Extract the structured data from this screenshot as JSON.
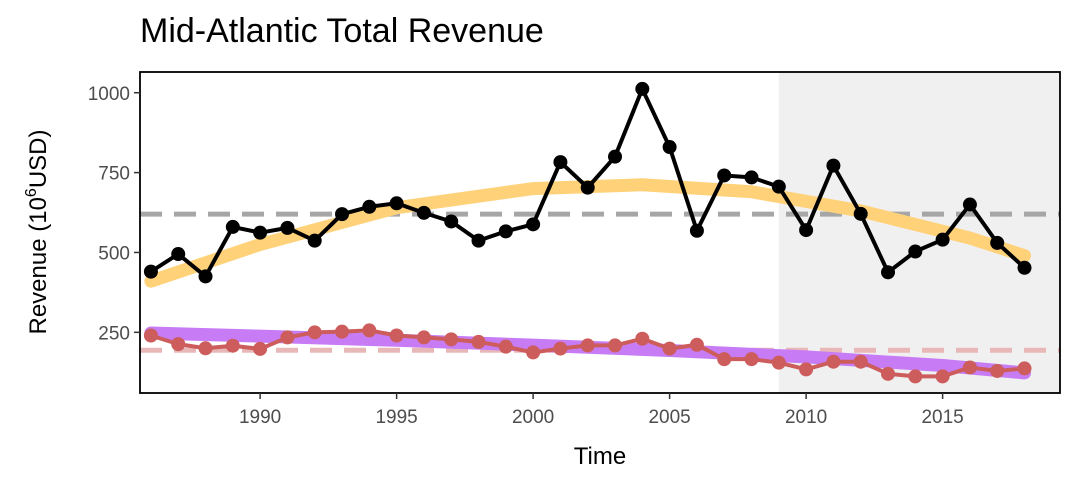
{
  "chart_data": {
    "type": "line",
    "title": "Mid-Atlantic Total Revenue",
    "xlabel": "Time",
    "ylabel": "Revenue (10",
    "ylabel_sup": "6",
    "ylabel_end": "USD)",
    "xlim": [
      1985.6,
      2019.3
    ],
    "ylim": [
      60,
      1065
    ],
    "x_ticks": [
      1990,
      1995,
      2000,
      2005,
      2010,
      2015
    ],
    "y_ticks": [
      250,
      500,
      750,
      1000
    ],
    "shaded_region": {
      "from": 2009,
      "to": 2019.3,
      "color": "#f0f0f0"
    },
    "x": [
      1986,
      1987,
      1988,
      1989,
      1990,
      1991,
      1992,
      1993,
      1994,
      1995,
      1996,
      1997,
      1998,
      1999,
      2000,
      2001,
      2002,
      2003,
      2004,
      2005,
      2006,
      2007,
      2008,
      2009,
      2010,
      2011,
      2012,
      2013,
      2014,
      2015,
      2016,
      2017,
      2018
    ],
    "series": [
      {
        "color": "#000000",
        "values": [
          440,
          495,
          425,
          580,
          562,
          577,
          537,
          620,
          643,
          654,
          624,
          597,
          537,
          566,
          588,
          783,
          703,
          800,
          1012,
          830,
          568,
          741,
          735,
          706,
          570,
          772,
          621,
          438,
          503,
          540,
          650,
          530,
          452
        ],
        "mean": 620,
        "mean_color": "#a6a6a6",
        "trend_color": "#ffd27a",
        "trend": {
          "x": [
            1986,
            1990,
            1995,
            2000,
            2004,
            2008,
            2012,
            2016,
            2018
          ],
          "y": [
            410,
            525,
            640,
            700,
            712,
            690,
            630,
            545,
            490
          ]
        }
      },
      {
        "color": "#cd5c5c",
        "values": [
          240,
          213,
          200,
          208,
          198,
          234,
          250,
          252,
          256,
          240,
          234,
          228,
          220,
          205,
          187,
          199,
          209,
          209,
          230,
          199,
          211,
          166,
          166,
          155,
          134,
          158,
          158,
          120,
          112,
          112,
          140,
          129,
          137
        ],
        "mean": 194,
        "mean_color": "#e8b8b8",
        "trend_color": "#c77cf5",
        "trend": {
          "x": [
            1986,
            1990,
            1995,
            2000,
            2005,
            2010,
            2015,
            2018
          ],
          "y": [
            248,
            238,
            225,
            210,
            193,
            173,
            146,
            123
          ]
        }
      }
    ]
  }
}
